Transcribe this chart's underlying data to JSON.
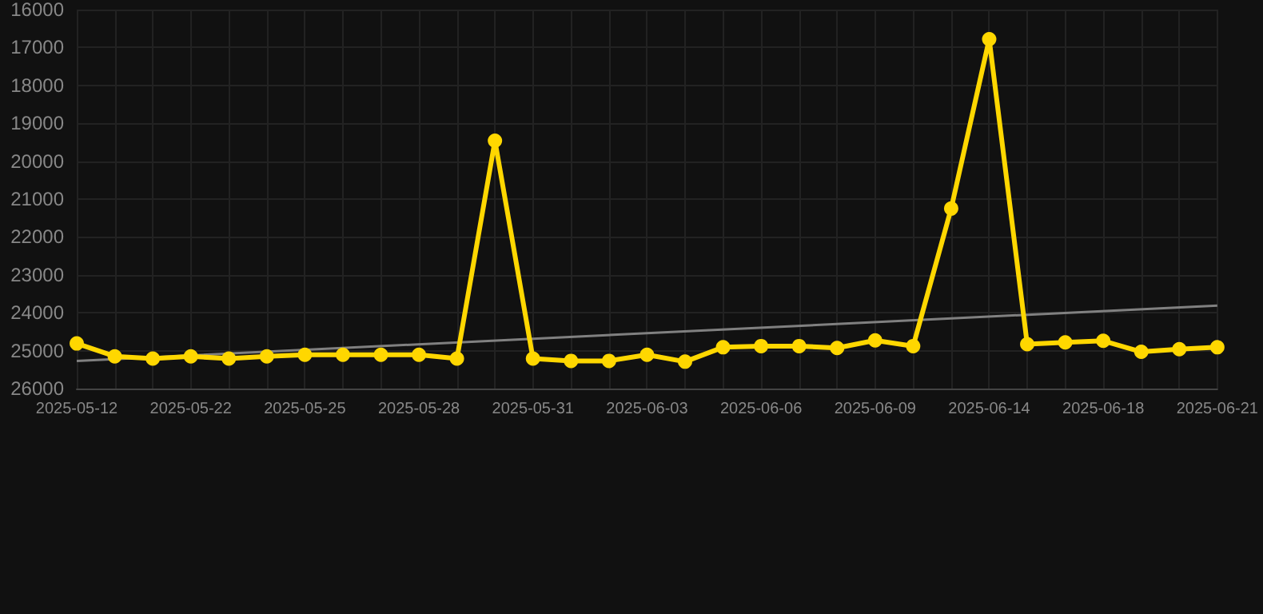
{
  "chart_data": {
    "type": "line",
    "categories": [
      "2025-05-12",
      null,
      null,
      "2025-05-22",
      null,
      null,
      "2025-05-25",
      null,
      null,
      "2025-05-28",
      null,
      null,
      "2025-05-31",
      null,
      null,
      "2025-06-03",
      null,
      null,
      "2025-06-06",
      null,
      null,
      "2025-06-09",
      null,
      null,
      "2025-06-14",
      null,
      null,
      "2025-06-18",
      null,
      null,
      "2025-06-21"
    ],
    "series": [
      {
        "color": "#ffd700",
        "marker": "circle",
        "values": [
          24810,
          25150,
          25210,
          25150,
          25210,
          25150,
          25110,
          25110,
          25110,
          25110,
          25210,
          19460,
          25210,
          25270,
          25270,
          25110,
          25290,
          24910,
          24880,
          24880,
          24930,
          24730,
          24880,
          21250,
          16780,
          24830,
          24780,
          24740,
          25030,
          24960,
          24910
        ]
      },
      {
        "type": "line",
        "color": "#808080",
        "marker": "none",
        "values": [
          25270,
          null,
          null,
          null,
          null,
          null,
          null,
          null,
          null,
          null,
          null,
          null,
          null,
          null,
          null,
          null,
          null,
          null,
          null,
          null,
          null,
          null,
          null,
          null,
          null,
          null,
          null,
          null,
          null,
          null,
          23810
        ]
      }
    ],
    "ylim": [
      26000,
      16000
    ],
    "yticks": [
      16000,
      17000,
      18000,
      19000,
      20000,
      21000,
      22000,
      23000,
      24000,
      25000,
      26000
    ],
    "grid": true
  }
}
